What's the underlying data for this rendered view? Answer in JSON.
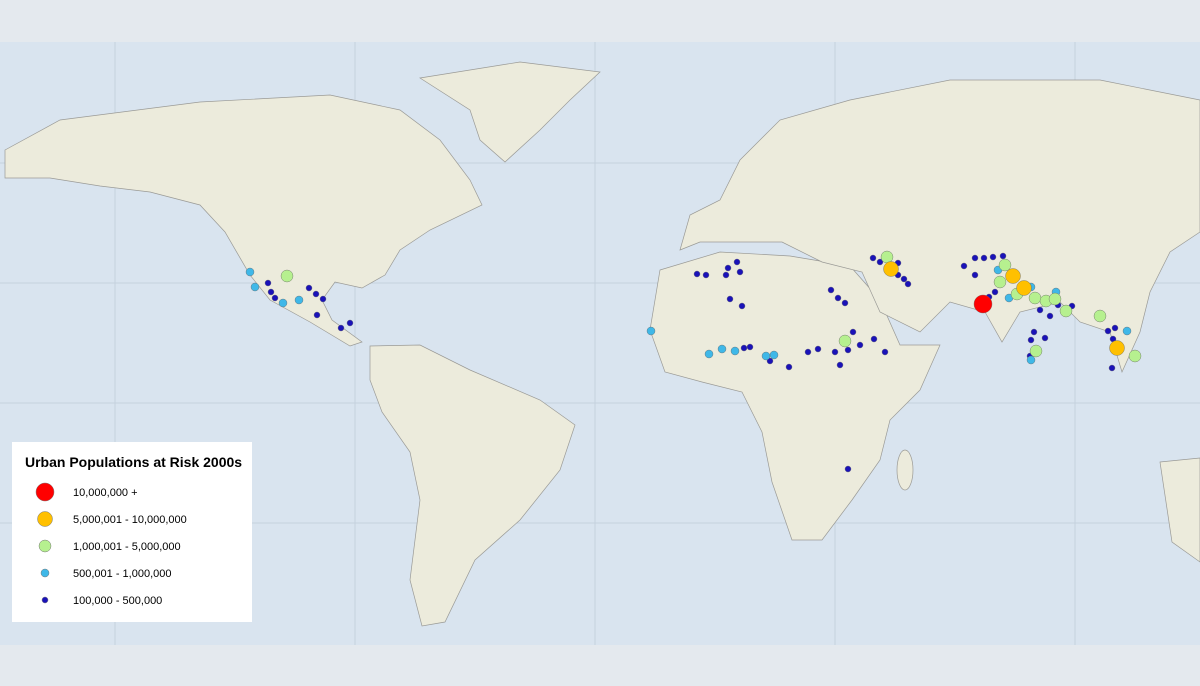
{
  "legend": {
    "title": "Urban Populations at Risk 2000s",
    "items": [
      {
        "label": "10,000,000 +",
        "color": "#ff0000"
      },
      {
        "label": "5,000,001 - 10,000,000",
        "color": "#ffc000"
      },
      {
        "label": "1,000,001 - 5,000,000",
        "color": "#b6f08f"
      },
      {
        "label": "500,001 - 1,000,000",
        "color": "#3fb8e8"
      },
      {
        "label": "100,000 - 500,000",
        "color": "#1a12b8"
      }
    ]
  }
}
